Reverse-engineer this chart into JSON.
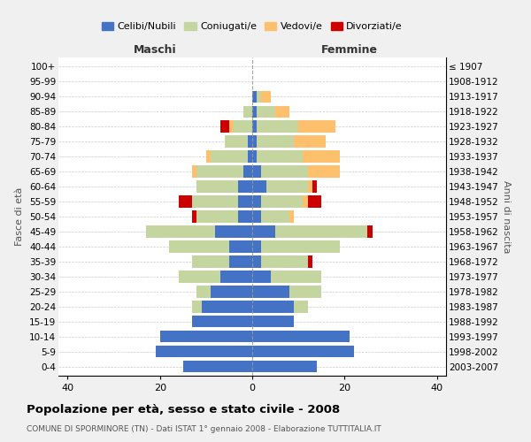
{
  "age_groups": [
    "0-4",
    "5-9",
    "10-14",
    "15-19",
    "20-24",
    "25-29",
    "30-34",
    "35-39",
    "40-44",
    "45-49",
    "50-54",
    "55-59",
    "60-64",
    "65-69",
    "70-74",
    "75-79",
    "80-84",
    "85-89",
    "90-94",
    "95-99",
    "100+"
  ],
  "birth_years": [
    "2003-2007",
    "1998-2002",
    "1993-1997",
    "1988-1992",
    "1983-1987",
    "1978-1982",
    "1973-1977",
    "1968-1972",
    "1963-1967",
    "1958-1962",
    "1953-1957",
    "1948-1952",
    "1943-1947",
    "1938-1942",
    "1933-1937",
    "1928-1932",
    "1923-1927",
    "1918-1922",
    "1913-1917",
    "1908-1912",
    "≤ 1907"
  ],
  "colors": {
    "celibi": "#4472c4",
    "coniugati": "#c5d5a0",
    "vedovi": "#ffc06e",
    "divorziati": "#cc0000"
  },
  "maschi": {
    "celibi": [
      15,
      21,
      20,
      13,
      11,
      9,
      7,
      5,
      5,
      8,
      3,
      3,
      3,
      2,
      1,
      1,
      0,
      0,
      0,
      0,
      0
    ],
    "coniugati": [
      0,
      0,
      0,
      0,
      2,
      3,
      9,
      8,
      13,
      15,
      9,
      10,
      9,
      10,
      8,
      5,
      4,
      2,
      0,
      0,
      0
    ],
    "vedovi": [
      0,
      0,
      0,
      0,
      0,
      0,
      0,
      0,
      0,
      0,
      0,
      0,
      0,
      1,
      1,
      0,
      1,
      0,
      0,
      0,
      0
    ],
    "divorziati": [
      0,
      0,
      0,
      0,
      0,
      0,
      0,
      0,
      0,
      0,
      1,
      3,
      0,
      0,
      0,
      0,
      2,
      0,
      0,
      0,
      0
    ]
  },
  "femmine": {
    "celibi": [
      14,
      22,
      21,
      9,
      9,
      8,
      4,
      2,
      2,
      5,
      2,
      2,
      3,
      2,
      1,
      1,
      1,
      1,
      1,
      0,
      0
    ],
    "coniugati": [
      0,
      0,
      0,
      0,
      3,
      7,
      11,
      10,
      17,
      20,
      6,
      9,
      9,
      10,
      10,
      8,
      9,
      4,
      1,
      0,
      0
    ],
    "vedovi": [
      0,
      0,
      0,
      0,
      0,
      0,
      0,
      0,
      0,
      0,
      1,
      1,
      1,
      7,
      8,
      7,
      8,
      3,
      2,
      0,
      0
    ],
    "divorziati": [
      0,
      0,
      0,
      0,
      0,
      0,
      0,
      1,
      0,
      1,
      0,
      3,
      1,
      0,
      0,
      0,
      0,
      0,
      0,
      0,
      0
    ]
  },
  "title": "Popolazione per età, sesso e stato civile - 2008",
  "subtitle": "COMUNE DI SPORMINORE (TN) - Dati ISTAT 1° gennaio 2008 - Elaborazione TUTTITALIA.IT",
  "xlabel_left": "Maschi",
  "xlabel_right": "Femmine",
  "ylabel_left": "Fasce di età",
  "ylabel_right": "Anni di nascita",
  "xlim": 42,
  "legend_labels": [
    "Celibi/Nubili",
    "Coniugati/e",
    "Vedovi/e",
    "Divorziati/e"
  ],
  "background_color": "#f0f0f0",
  "plot_background": "#ffffff"
}
